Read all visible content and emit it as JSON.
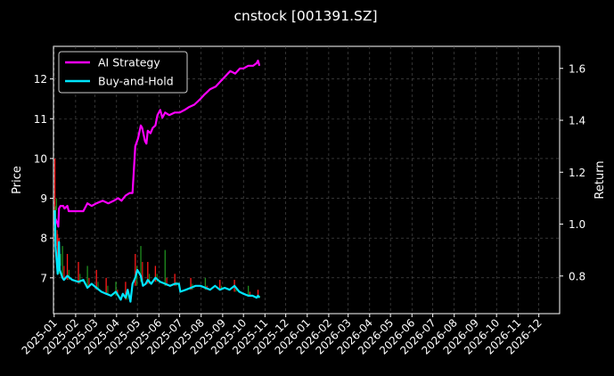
{
  "colors": {
    "background": "#000000",
    "grid": "#555555",
    "ai_strategy": "#ff00ff",
    "buy_and_hold": "#00e5ff",
    "candle_up": "#ff1a1a",
    "candle_down": "#1f8f1f"
  },
  "chart_data": {
    "type": "line",
    "title": "cnstock [001391.SZ]",
    "ylabel_left": "Price",
    "ylabel_right": "Return",
    "ylim_left": [
      6.1,
      12.82
    ],
    "ylim_right": [
      0.655,
      1.685
    ],
    "xlim": [
      "2024-12-31",
      "2026-12-31"
    ],
    "grid": true,
    "legend_position": "top-left",
    "x_ticks": [
      "2025-01",
      "2025-02",
      "2025-03",
      "2025-04",
      "2025-05",
      "2025-06",
      "2025-07",
      "2025-08",
      "2025-09",
      "2025-10",
      "2025-11",
      "2025-12",
      "2026-01",
      "2026-02",
      "2026-03",
      "2026-04",
      "2026-05",
      "2026-06",
      "2026-07",
      "2026-08",
      "2026-09",
      "2026-10",
      "2026-11",
      "2026-12"
    ],
    "y_ticks_left": [
      7,
      8,
      9,
      10,
      11,
      12
    ],
    "y_ticks_right": [
      "0.8",
      "1.0",
      "1.2",
      "1.4",
      "1.6"
    ],
    "series": [
      {
        "name": "AI Strategy",
        "axis": "right",
        "points": [
          [
            "2025-01-02",
            1.0
          ],
          [
            "2025-01-03",
            1.02
          ],
          [
            "2025-01-06",
            1.0
          ],
          [
            "2025-01-07",
            0.99
          ],
          [
            "2025-01-08",
            1.06
          ],
          [
            "2025-01-10",
            1.07
          ],
          [
            "2025-01-14",
            1.07
          ],
          [
            "2025-01-16",
            1.06
          ],
          [
            "2025-01-20",
            1.07
          ],
          [
            "2025-01-22",
            1.05
          ],
          [
            "2025-02-05",
            1.05
          ],
          [
            "2025-02-12",
            1.05
          ],
          [
            "2025-02-18",
            1.08
          ],
          [
            "2025-02-24",
            1.07
          ],
          [
            "2025-03-03",
            1.08
          ],
          [
            "2025-03-12",
            1.09
          ],
          [
            "2025-03-20",
            1.08
          ],
          [
            "2025-03-28",
            1.09
          ],
          [
            "2025-04-03",
            1.1
          ],
          [
            "2025-04-08",
            1.09
          ],
          [
            "2025-04-14",
            1.11
          ],
          [
            "2025-04-20",
            1.12
          ],
          [
            "2025-04-24",
            1.12
          ],
          [
            "2025-04-28",
            1.3
          ],
          [
            "2025-05-02",
            1.33
          ],
          [
            "2025-05-06",
            1.38
          ],
          [
            "2025-05-08",
            1.37
          ],
          [
            "2025-05-12",
            1.32
          ],
          [
            "2025-05-14",
            1.31
          ],
          [
            "2025-05-16",
            1.36
          ],
          [
            "2025-05-20",
            1.35
          ],
          [
            "2025-05-23",
            1.37
          ],
          [
            "2025-05-27",
            1.38
          ],
          [
            "2025-05-30",
            1.42
          ],
          [
            "2025-06-03",
            1.44
          ],
          [
            "2025-06-06",
            1.41
          ],
          [
            "2025-06-10",
            1.43
          ],
          [
            "2025-06-16",
            1.42
          ],
          [
            "2025-06-24",
            1.43
          ],
          [
            "2025-07-01",
            1.43
          ],
          [
            "2025-07-08",
            1.44
          ],
          [
            "2025-07-14",
            1.45
          ],
          [
            "2025-07-22",
            1.46
          ],
          [
            "2025-07-30",
            1.48
          ],
          [
            "2025-08-06",
            1.5
          ],
          [
            "2025-08-14",
            1.52
          ],
          [
            "2025-08-22",
            1.53
          ],
          [
            "2025-08-29",
            1.55
          ],
          [
            "2025-09-05",
            1.57
          ],
          [
            "2025-09-12",
            1.59
          ],
          [
            "2025-09-19",
            1.58
          ],
          [
            "2025-09-26",
            1.6
          ],
          [
            "2025-10-01",
            1.6
          ],
          [
            "2025-10-08",
            1.61
          ],
          [
            "2025-10-15",
            1.61
          ],
          [
            "2025-10-20",
            1.62
          ],
          [
            "2025-10-22",
            1.63
          ],
          [
            "2025-10-24",
            1.61
          ]
        ]
      },
      {
        "name": "Buy-and-Hold",
        "axis": "left",
        "points": [
          [
            "2025-01-02",
            8.7
          ],
          [
            "2025-01-03",
            7.8
          ],
          [
            "2025-01-06",
            7.1
          ],
          [
            "2025-01-07",
            7.3
          ],
          [
            "2025-01-08",
            7.9
          ],
          [
            "2025-01-09",
            7.2
          ],
          [
            "2025-01-13",
            7.0
          ],
          [
            "2025-01-15",
            6.95
          ],
          [
            "2025-01-20",
            7.05
          ],
          [
            "2025-01-27",
            6.95
          ],
          [
            "2025-02-05",
            6.9
          ],
          [
            "2025-02-12",
            6.95
          ],
          [
            "2025-02-18",
            6.75
          ],
          [
            "2025-02-24",
            6.85
          ],
          [
            "2025-03-03",
            6.75
          ],
          [
            "2025-03-10",
            6.65
          ],
          [
            "2025-03-17",
            6.6
          ],
          [
            "2025-03-24",
            6.55
          ],
          [
            "2025-03-31",
            6.65
          ],
          [
            "2025-04-07",
            6.45
          ],
          [
            "2025-04-10",
            6.6
          ],
          [
            "2025-04-14",
            6.5
          ],
          [
            "2025-04-17",
            6.7
          ],
          [
            "2025-04-21",
            6.4
          ],
          [
            "2025-04-24",
            6.85
          ],
          [
            "2025-04-28",
            7.0
          ],
          [
            "2025-05-01",
            7.2
          ],
          [
            "2025-05-06",
            7.05
          ],
          [
            "2025-05-09",
            6.8
          ],
          [
            "2025-05-13",
            6.85
          ],
          [
            "2025-05-16",
            6.95
          ],
          [
            "2025-05-21",
            6.85
          ],
          [
            "2025-05-27",
            7.0
          ],
          [
            "2025-06-03",
            6.9
          ],
          [
            "2025-06-10",
            6.85
          ],
          [
            "2025-06-17",
            6.8
          ],
          [
            "2025-06-24",
            6.85
          ],
          [
            "2025-06-30",
            6.85
          ],
          [
            "2025-07-02",
            6.65
          ],
          [
            "2025-07-10",
            6.7
          ],
          [
            "2025-07-17",
            6.75
          ],
          [
            "2025-07-24",
            6.8
          ],
          [
            "2025-07-31",
            6.8
          ],
          [
            "2025-08-07",
            6.75
          ],
          [
            "2025-08-14",
            6.7
          ],
          [
            "2025-08-21",
            6.8
          ],
          [
            "2025-08-28",
            6.7
          ],
          [
            "2025-09-04",
            6.75
          ],
          [
            "2025-09-11",
            6.7
          ],
          [
            "2025-09-18",
            6.8
          ],
          [
            "2025-09-25",
            6.65
          ],
          [
            "2025-10-01",
            6.6
          ],
          [
            "2025-10-08",
            6.55
          ],
          [
            "2025-10-14",
            6.55
          ],
          [
            "2025-10-20",
            6.5
          ],
          [
            "2025-10-22",
            6.55
          ],
          [
            "2025-10-24",
            6.5
          ]
        ]
      }
    ],
    "candlesticks": [
      [
        "2025-01-02",
        8.7,
        10.0,
        9.0
      ],
      [
        "2025-01-03",
        7.8,
        8.8,
        8.2
      ],
      [
        "2025-01-06",
        7.1,
        8.1,
        7.5
      ],
      [
        "2025-01-08",
        7.3,
        8.0,
        7.6
      ],
      [
        "2025-01-13",
        7.0,
        7.8,
        7.3
      ],
      [
        "2025-01-20",
        6.95,
        7.6,
        7.2
      ],
      [
        "2025-02-05",
        6.85,
        7.4,
        7.1
      ],
      [
        "2025-02-18",
        6.75,
        7.3,
        7.0
      ],
      [
        "2025-03-03",
        6.7,
        7.2,
        6.9
      ],
      [
        "2025-03-17",
        6.6,
        7.0,
        6.8
      ],
      [
        "2025-03-31",
        6.55,
        6.9,
        6.7
      ],
      [
        "2025-04-14",
        6.45,
        6.9,
        6.6
      ],
      [
        "2025-04-28",
        6.8,
        7.6,
        7.3
      ],
      [
        "2025-05-06",
        6.9,
        7.8,
        7.4
      ],
      [
        "2025-05-16",
        6.85,
        7.4,
        7.1
      ],
      [
        "2025-05-27",
        6.9,
        7.3,
        7.1
      ],
      [
        "2025-06-10",
        6.8,
        7.7,
        7.0
      ],
      [
        "2025-06-24",
        6.8,
        7.1,
        6.9
      ],
      [
        "2025-07-17",
        6.7,
        7.0,
        6.85
      ],
      [
        "2025-08-07",
        6.7,
        7.0,
        6.8
      ],
      [
        "2025-08-28",
        6.7,
        6.95,
        6.8
      ],
      [
        "2025-09-18",
        6.65,
        6.95,
        6.75
      ],
      [
        "2025-10-08",
        6.55,
        6.8,
        6.65
      ],
      [
        "2025-10-22",
        6.5,
        6.7,
        6.55
      ]
    ]
  }
}
